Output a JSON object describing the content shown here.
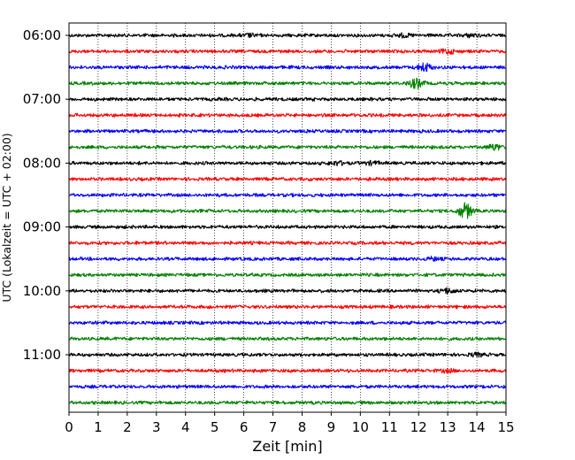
{
  "chart_data": {
    "type": "line",
    "chart_kind": "helicorder / seismogram drum plot",
    "xlabel": "Zeit  [min]",
    "ylabel": "UTC (Lokalzeit = UTC + 02:00)",
    "xlim": [
      0,
      15
    ],
    "x_ticks": [
      "0",
      "1",
      "2",
      "3",
      "4",
      "5",
      "6",
      "7",
      "8",
      "9",
      "10",
      "11",
      "12",
      "13",
      "14",
      "15"
    ],
    "y_tick_labels": [
      "06:00",
      "07:00",
      "08:00",
      "09:00",
      "10:00",
      "11:00"
    ],
    "grid": "vertical dotted lines at each minute",
    "line_interval_minutes": 15,
    "trace_colors": [
      "#000000",
      "#ff0000",
      "#0000ff",
      "#008000"
    ],
    "traces": [
      {
        "start": "06:00",
        "events": [
          {
            "minute": 11.5,
            "amp": 1.6
          },
          {
            "minute": 13.8,
            "amp": 1.5
          },
          {
            "minute": 6.2,
            "amp": 1.3
          }
        ]
      },
      {
        "start": "06:15",
        "events": [
          {
            "minute": 13.0,
            "amp": 2.2
          }
        ]
      },
      {
        "start": "06:30",
        "events": [
          {
            "minute": 12.2,
            "amp": 4.5
          }
        ]
      },
      {
        "start": "06:45",
        "events": [
          {
            "minute": 11.9,
            "amp": 4.8
          }
        ]
      },
      {
        "start": "07:00",
        "events": []
      },
      {
        "start": "07:15",
        "events": []
      },
      {
        "start": "07:30",
        "events": []
      },
      {
        "start": "07:45",
        "events": [
          {
            "minute": 14.6,
            "amp": 3.0
          }
        ]
      },
      {
        "start": "08:00",
        "events": [
          {
            "minute": 9.2,
            "amp": 1.8
          },
          {
            "minute": 10.4,
            "amp": 1.6
          }
        ]
      },
      {
        "start": "08:15",
        "events": []
      },
      {
        "start": "08:30",
        "events": []
      },
      {
        "start": "08:45",
        "events": [
          {
            "minute": 13.6,
            "amp": 8.0
          }
        ]
      },
      {
        "start": "09:00",
        "events": []
      },
      {
        "start": "09:15",
        "events": []
      },
      {
        "start": "09:30",
        "events": [
          {
            "minute": 12.5,
            "amp": 1.4
          }
        ]
      },
      {
        "start": "09:45",
        "events": []
      },
      {
        "start": "10:00",
        "events": [
          {
            "minute": 13.0,
            "amp": 2.4
          }
        ]
      },
      {
        "start": "10:15",
        "events": []
      },
      {
        "start": "10:30",
        "events": []
      },
      {
        "start": "10:45",
        "events": []
      },
      {
        "start": "11:00",
        "events": [
          {
            "minute": 14.0,
            "amp": 1.6
          }
        ]
      },
      {
        "start": "11:15",
        "events": [
          {
            "minute": 13.0,
            "amp": 1.3
          }
        ]
      },
      {
        "start": "11:30",
        "events": []
      },
      {
        "start": "11:45",
        "events": []
      }
    ]
  }
}
